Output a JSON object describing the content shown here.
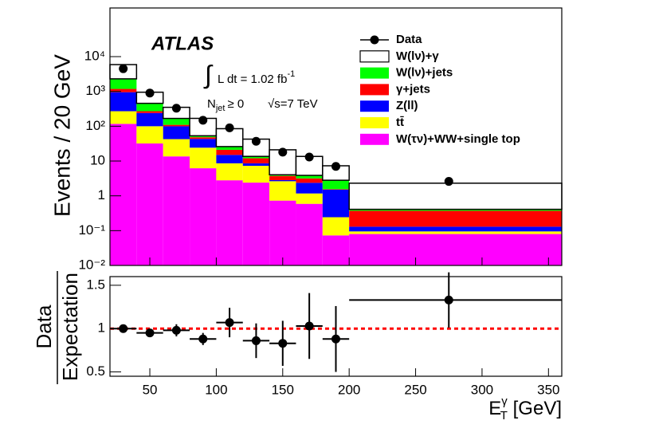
{
  "chart_data": [
    {
      "type": "histogram",
      "log_y": true,
      "y_label": "Events / 20 GeV",
      "annotations": {
        "atlas": "ATLAS",
        "integral": "∫",
        "lumi": "L dt = 1.02 fb",
        "lumi_sup": "-1",
        "njet": "N",
        "njet_sub": "jet",
        "njet_cond": "≥ 0",
        "energy": "√s=7 TeV"
      },
      "bins": [
        20,
        40,
        60,
        80,
        100,
        120,
        140,
        160,
        180,
        200,
        360
      ],
      "xlim": [
        20,
        360
      ],
      "ylim": [
        0.01,
        250000
      ],
      "yticks": [
        {
          "value": 0.01,
          "label": "10⁻²"
        },
        {
          "value": 0.1,
          "label": "10⁻¹"
        },
        1,
        10,
        {
          "value": 100,
          "label": "10²"
        },
        {
          "value": 1000,
          "label": "10³"
        },
        {
          "value": 10000,
          "label": "10⁴"
        }
      ],
      "series": [
        {
          "name": "W(τν)+WW+single top",
          "color": "#ff00ff",
          "values": [
            117,
            32,
            13.6,
            6.2,
            2.8,
            2.4,
            0.73,
            0.59,
            0.073,
            0.08
          ]
        },
        {
          "name": "tt̄",
          "color": "#ffff00",
          "values": [
            153,
            68,
            29,
            18,
            5.8,
            4.9,
            1.9,
            0.58,
            0.17,
            0.015
          ]
        },
        {
          "name": "Z(ll)",
          "color": "#0000ff",
          "values": [
            680,
            140,
            57,
            19,
            6.4,
            1.3,
            0.2,
            1.2,
            1.26,
            0.035
          ]
        },
        {
          "name": "γ+jets",
          "color": "#ff0000",
          "values": [
            230,
            30,
            10,
            5,
            6,
            3.4,
            0.9,
            0.8,
            0.05,
            0.24
          ]
        },
        {
          "name": "W(lν)+jets",
          "color": "#00ff00",
          "values": [
            1120,
            185,
            58,
            5,
            5,
            1.6,
            0.3,
            0.7,
            1.25,
            0.04
          ]
        },
        {
          "name": "W(lν)+γ",
          "color": "#ffffff",
          "values": [
            3600,
            495,
            182,
            115,
            59,
            29,
            17,
            9.7,
            4.5,
            1.9
          ]
        }
      ],
      "data": {
        "name": "Data",
        "color": "#000000",
        "x": [
          30,
          50,
          70,
          90,
          110,
          130,
          150,
          170,
          190,
          275
        ],
        "values": [
          4500,
          900,
          330,
          148,
          90,
          37,
          18,
          13,
          7,
          2.6
        ]
      }
    },
    {
      "type": "ratio",
      "y_label_top": "Data",
      "y_label_bottom": "Expectation",
      "x_label": {
        "base": "E",
        "sub": "T",
        "sup": "γ",
        "unit": " [GeV]"
      },
      "xlim": [
        20,
        360
      ],
      "xticks": [
        50,
        100,
        150,
        200,
        250,
        300,
        350
      ],
      "ylim": [
        0.45,
        1.6
      ],
      "yticks": [
        0.5,
        1,
        1.5
      ],
      "reference_line": 1,
      "reference_color": "#ff0000",
      "x": [
        30,
        50,
        70,
        90,
        110,
        130,
        150,
        170,
        190,
        275
      ],
      "values": [
        1.0,
        0.95,
        0.98,
        0.88,
        1.07,
        0.86,
        0.83,
        1.03,
        0.88,
        1.33
      ],
      "errors": [
        0.02,
        0.03,
        0.07,
        0.07,
        0.17,
        0.2,
        0.26,
        0.38,
        0.38,
        0.32
      ]
    }
  ]
}
